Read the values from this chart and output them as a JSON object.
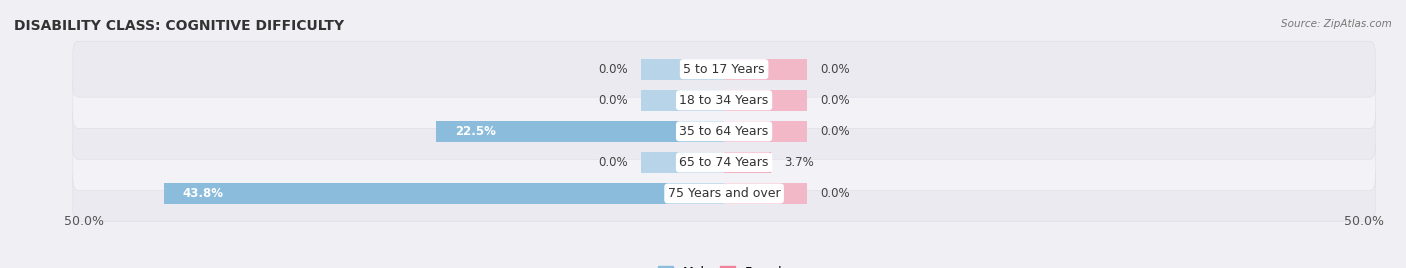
{
  "title": "DISABILITY CLASS: COGNITIVE DIFFICULTY",
  "source": "Source: ZipAtlas.com",
  "categories": [
    "5 to 17 Years",
    "18 to 34 Years",
    "35 to 64 Years",
    "65 to 74 Years",
    "75 Years and over"
  ],
  "male_values": [
    0.0,
    0.0,
    22.5,
    0.0,
    43.8
  ],
  "female_values": [
    0.0,
    0.0,
    0.0,
    3.7,
    0.0
  ],
  "male_color": "#8bbcdb",
  "female_color": "#ee829a",
  "female_color_light": "#f2b8c8",
  "male_color_light": "#b8d4e8",
  "row_colors": [
    "#eaeaf0",
    "#f3f3f7"
  ],
  "label_bg": "#ffffff",
  "xlim": 50.0,
  "stub_size": 6.5,
  "title_fontsize": 10,
  "tick_fontsize": 9,
  "label_fontsize": 9,
  "value_fontsize": 8.5,
  "bar_height": 0.68
}
